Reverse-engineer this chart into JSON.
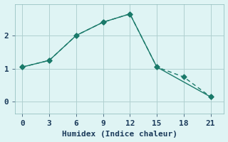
{
  "xlabel": "Humidex (Indice chaleur)",
  "background_color": "#dff4f4",
  "grid_color": "#b0d0d0",
  "line_color": "#1a7a6a",
  "x_solid": [
    0,
    3,
    6,
    9,
    12,
    15,
    21
  ],
  "y_solid": [
    1.05,
    1.25,
    2.0,
    2.4,
    2.65,
    1.05,
    0.15
  ],
  "x_dashed": [
    0,
    3,
    6,
    9,
    12,
    15,
    18,
    21
  ],
  "y_dashed": [
    1.05,
    1.25,
    2.0,
    2.4,
    2.65,
    1.05,
    0.75,
    0.15
  ],
  "xlim": [
    -0.8,
    22.5
  ],
  "ylim": [
    -0.35,
    2.95
  ],
  "xticks": [
    0,
    3,
    6,
    9,
    12,
    15,
    18,
    21
  ],
  "yticks": [
    0,
    1,
    2
  ],
  "marker": "D",
  "marker_size": 3.5,
  "line_width": 1.0,
  "font_size": 8
}
